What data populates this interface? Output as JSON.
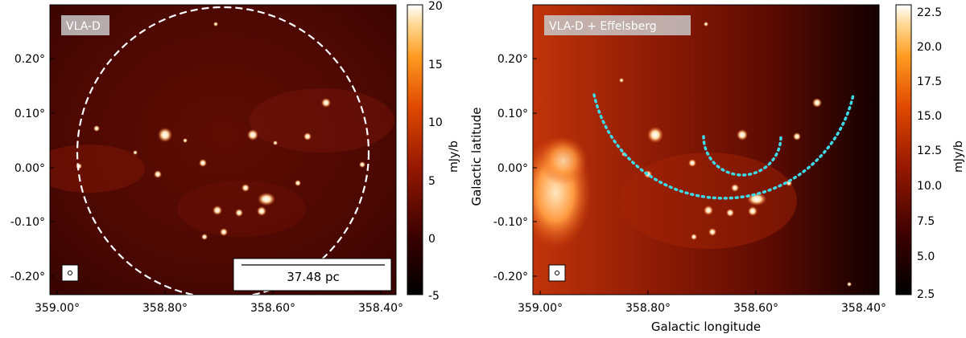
{
  "panels": {
    "left": {
      "label": "VLA-D",
      "scalebar_label": "37.48 pc",
      "colorbar": {
        "label": "mJy/b",
        "ticks": [
          "20",
          "15",
          "10",
          "5",
          "0",
          "-5"
        ]
      }
    },
    "right": {
      "label": "VLA-D + Effelsberg",
      "colorbar": {
        "label": "mJy/b",
        "ticks": [
          "22.5",
          "20.0",
          "17.5",
          "15.0",
          "12.5",
          "10.0",
          "7.5",
          "5.0",
          "2.5"
        ]
      }
    }
  },
  "axes": {
    "xlabel": "Galactic longitude",
    "ylabel": "Galactic latitude",
    "x_ticks": [
      "359.00°",
      "358.80°",
      "358.60°",
      "358.40°"
    ],
    "y_ticks": [
      "0.20°",
      "0.10°",
      "0.00°",
      "-0.10°",
      "-0.20°"
    ]
  },
  "colors": {
    "map_dark": "#2a0000",
    "map_mid": "#8b1a05",
    "map_bright": "#ff8a1c",
    "circle": "#ffffff",
    "arcs": "#3fd9e6"
  }
}
